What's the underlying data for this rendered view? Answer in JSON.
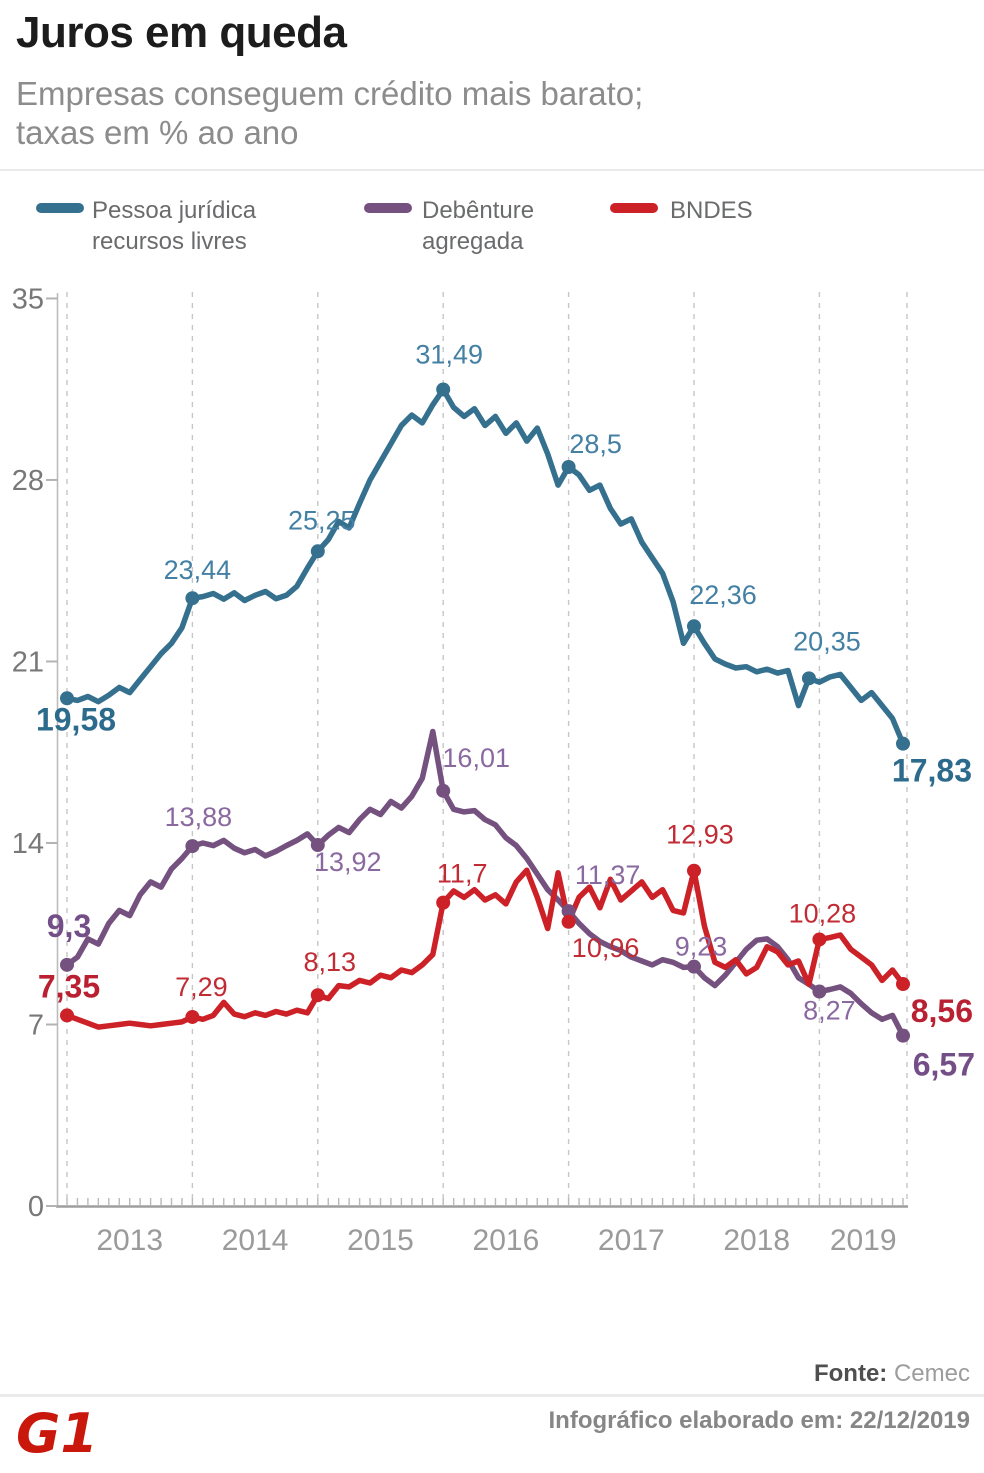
{
  "header": {
    "title": "Juros em queda",
    "subtitle_line1": "Empresas conseguem crédito mais barato;",
    "subtitle_line2": "taxas em % ao ano"
  },
  "legend": {
    "items": [
      {
        "name": "Pessoa jurídica recursos livres",
        "lines": [
          "Pessoa jurídica",
          "recursos livres"
        ],
        "color": "#35708f"
      },
      {
        "name": "Debênture agregada",
        "lines": [
          "Debênture",
          "agregada"
        ],
        "color": "#74517f"
      },
      {
        "name": "BNDES",
        "lines": [
          "BNDES"
        ],
        "color": "#cc2127"
      }
    ]
  },
  "footer": {
    "source_label": "Fonte:",
    "source_value": "Cemec",
    "credit": "Infográfico elaborado em: 22/12/2019",
    "logo_text": "G1",
    "logo_color": "#c9170c"
  },
  "chart_data": {
    "type": "line",
    "title": "Juros em queda",
    "subtitle": "Empresas conseguem crédito mais barato; taxas em % ao ano",
    "unit": "% ao ano",
    "x_frequency": "monthly",
    "x_start": "2012-12",
    "x_end": "2019-08",
    "x_tick_labels": [
      "2013",
      "2014",
      "2015",
      "2016",
      "2017",
      "2018",
      "2019"
    ],
    "y_ticks": [
      0,
      7,
      14,
      21,
      28,
      35
    ],
    "ylim": [
      0,
      35
    ],
    "grid": "vertical-dashed-yearly",
    "legend_position": "top",
    "series": [
      {
        "name": "Pessoa jurídica recursos livres",
        "color": "#35708f",
        "label_color": "#4380a3",
        "label_color_bold": "#2d6b8c",
        "values": [
          19.58,
          19.5,
          19.65,
          19.45,
          19.7,
          20.0,
          19.8,
          20.3,
          20.8,
          21.3,
          21.7,
          22.3,
          23.44,
          23.5,
          23.62,
          23.4,
          23.65,
          23.35,
          23.55,
          23.7,
          23.42,
          23.55,
          23.9,
          24.6,
          25.25,
          25.7,
          26.4,
          26.15,
          27.1,
          28.0,
          28.7,
          29.4,
          30.1,
          30.5,
          30.2,
          30.9,
          31.49,
          30.8,
          30.45,
          30.75,
          30.1,
          30.45,
          29.8,
          30.2,
          29.5,
          30.0,
          29.0,
          27.8,
          28.5,
          28.2,
          27.6,
          27.8,
          26.9,
          26.3,
          26.5,
          25.6,
          25.0,
          24.4,
          23.3,
          21.7,
          22.36,
          21.7,
          21.1,
          20.9,
          20.75,
          20.8,
          20.6,
          20.7,
          20.55,
          20.65,
          19.3,
          20.35,
          20.2,
          20.4,
          20.5,
          20.0,
          19.5,
          19.8,
          19.3,
          18.8,
          17.83
        ]
      },
      {
        "name": "Debênture agregada",
        "color": "#74517f",
        "label_color": "#8a69a0",
        "label_color_bold": "#744e87",
        "values": [
          9.3,
          9.6,
          10.3,
          10.1,
          10.9,
          11.4,
          11.2,
          12.0,
          12.5,
          12.3,
          13.0,
          13.4,
          13.88,
          14.0,
          13.9,
          14.1,
          13.8,
          13.62,
          13.75,
          13.5,
          13.68,
          13.9,
          14.1,
          14.35,
          13.92,
          14.3,
          14.6,
          14.4,
          14.9,
          15.3,
          15.1,
          15.6,
          15.35,
          15.8,
          16.5,
          18.3,
          16.01,
          15.3,
          15.2,
          15.25,
          14.9,
          14.7,
          14.2,
          13.9,
          13.4,
          12.8,
          12.2,
          11.8,
          11.37,
          10.9,
          10.5,
          10.2,
          10.0,
          9.85,
          9.6,
          9.45,
          9.3,
          9.5,
          9.4,
          9.2,
          9.23,
          8.8,
          8.5,
          8.9,
          9.4,
          9.9,
          10.25,
          10.3,
          10.0,
          9.5,
          8.8,
          8.55,
          8.27,
          8.35,
          8.45,
          8.2,
          7.8,
          7.45,
          7.2,
          7.35,
          6.57
        ]
      },
      {
        "name": "BNDES",
        "color": "#cc2127",
        "label_color": "#c12b34",
        "label_color_bold": "#b92031",
        "values": [
          7.35,
          7.2,
          7.05,
          6.9,
          6.95,
          7.0,
          7.05,
          7.0,
          6.95,
          7.0,
          7.05,
          7.1,
          7.29,
          7.2,
          7.35,
          7.85,
          7.4,
          7.3,
          7.45,
          7.35,
          7.5,
          7.4,
          7.55,
          7.45,
          8.13,
          8.0,
          8.5,
          8.45,
          8.7,
          8.6,
          8.9,
          8.8,
          9.1,
          9.0,
          9.3,
          9.7,
          11.7,
          12.15,
          11.9,
          12.2,
          11.8,
          12.0,
          11.65,
          12.5,
          12.95,
          11.9,
          10.7,
          12.85,
          10.96,
          11.9,
          12.3,
          11.5,
          12.6,
          11.8,
          12.15,
          12.5,
          11.9,
          12.2,
          11.4,
          11.3,
          12.93,
          10.8,
          9.4,
          9.2,
          9.5,
          8.95,
          9.2,
          10.0,
          9.8,
          9.3,
          9.45,
          8.55,
          10.28,
          10.35,
          10.45,
          9.9,
          9.6,
          9.3,
          8.7,
          9.1,
          8.56
        ]
      }
    ],
    "labeled_points": [
      {
        "series": 0,
        "t": 0,
        "value": 19.58,
        "label": "19,58",
        "bold": true
      },
      {
        "series": 0,
        "t": 12,
        "value": 23.44,
        "label": "23,44",
        "bold": false
      },
      {
        "series": 0,
        "t": 24,
        "value": 25.25,
        "label": "25,25",
        "bold": false
      },
      {
        "series": 0,
        "t": 36,
        "value": 31.49,
        "label": "31,49",
        "bold": false
      },
      {
        "series": 0,
        "t": 48,
        "value": 28.5,
        "label": "28,5",
        "bold": false
      },
      {
        "series": 0,
        "t": 60,
        "value": 22.36,
        "label": "22,36",
        "bold": false
      },
      {
        "series": 0,
        "t": 71,
        "value": 20.35,
        "label": "20,35",
        "bold": false
      },
      {
        "series": 0,
        "t": 80,
        "value": 17.83,
        "label": "17,83",
        "bold": true
      },
      {
        "series": 1,
        "t": 0,
        "value": 9.3,
        "label": "9,3",
        "bold": true
      },
      {
        "series": 1,
        "t": 12,
        "value": 13.88,
        "label": "13,88",
        "bold": false
      },
      {
        "series": 1,
        "t": 24,
        "value": 13.92,
        "label": "13,92",
        "bold": false
      },
      {
        "series": 1,
        "t": 36,
        "value": 16.01,
        "label": "16,01",
        "bold": false
      },
      {
        "series": 1,
        "t": 48,
        "value": 11.37,
        "label": "11,37",
        "bold": false
      },
      {
        "series": 1,
        "t": 60,
        "value": 9.23,
        "label": "9,23",
        "bold": false
      },
      {
        "series": 1,
        "t": 72,
        "value": 8.27,
        "label": "8,27",
        "bold": false
      },
      {
        "series": 1,
        "t": 80,
        "value": 6.57,
        "label": "6,57",
        "bold": true
      },
      {
        "series": 2,
        "t": 0,
        "value": 7.35,
        "label": "7,35",
        "bold": true
      },
      {
        "series": 2,
        "t": 12,
        "value": 7.29,
        "label": "7,29",
        "bold": false
      },
      {
        "series": 2,
        "t": 24,
        "value": 8.13,
        "label": "8,13",
        "bold": false
      },
      {
        "series": 2,
        "t": 36,
        "value": 11.7,
        "label": "11,7",
        "bold": false
      },
      {
        "series": 2,
        "t": 48,
        "value": 10.96,
        "label": "10,96",
        "bold": false
      },
      {
        "series": 2,
        "t": 60,
        "value": 12.93,
        "label": "12,93",
        "bold": false
      },
      {
        "series": 2,
        "t": 72,
        "value": 10.28,
        "label": "10,28",
        "bold": false
      },
      {
        "series": 2,
        "t": 80,
        "value": 8.56,
        "label": "8,56",
        "bold": true
      }
    ]
  }
}
